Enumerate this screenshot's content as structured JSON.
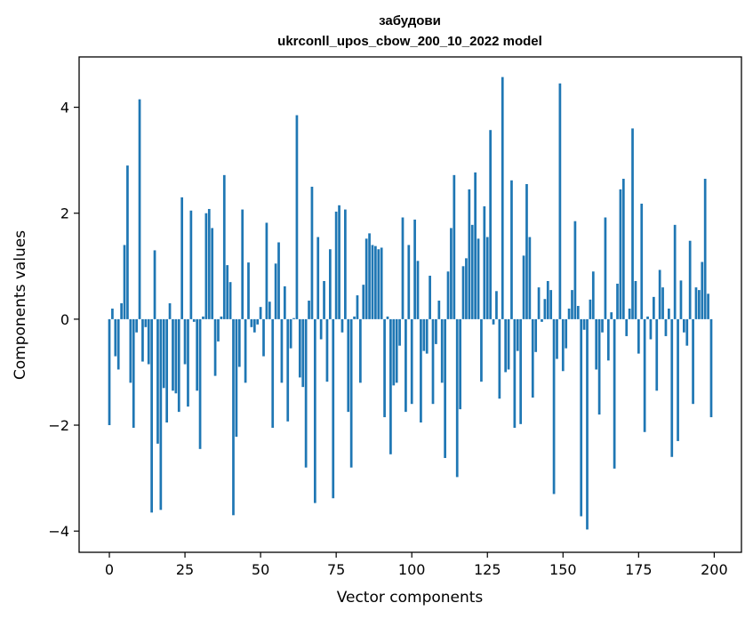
{
  "chart_data": {
    "type": "bar",
    "title_lines": [
      "забудови",
      "ukrconll_upos_cbow_200_10_2022 model"
    ],
    "xlabel": "Vector components",
    "ylabel": "Components values",
    "xlim": [
      -10,
      209
    ],
    "ylim": [
      -4.4,
      4.95
    ],
    "xticks": [
      0,
      25,
      50,
      75,
      100,
      125,
      150,
      175,
      200
    ],
    "yticks": [
      -4,
      -2,
      0,
      2,
      4
    ],
    "ytick_labels": [
      "−4",
      "−2",
      "0",
      "2",
      "4"
    ],
    "bar_color": "#1f77b4",
    "grid": false,
    "x": [
      0,
      1,
      2,
      3,
      4,
      5,
      6,
      7,
      8,
      9,
      10,
      11,
      12,
      13,
      14,
      15,
      16,
      17,
      18,
      19,
      20,
      21,
      22,
      23,
      24,
      25,
      26,
      27,
      28,
      29,
      30,
      31,
      32,
      33,
      34,
      35,
      36,
      37,
      38,
      39,
      40,
      41,
      42,
      43,
      44,
      45,
      46,
      47,
      48,
      49,
      50,
      51,
      52,
      53,
      54,
      55,
      56,
      57,
      58,
      59,
      60,
      61,
      62,
      63,
      64,
      65,
      66,
      67,
      68,
      69,
      70,
      71,
      72,
      73,
      74,
      75,
      76,
      77,
      78,
      79,
      80,
      81,
      82,
      83,
      84,
      85,
      86,
      87,
      88,
      89,
      90,
      91,
      92,
      93,
      94,
      95,
      96,
      97,
      98,
      99,
      100,
      101,
      102,
      103,
      104,
      105,
      106,
      107,
      108,
      109,
      110,
      111,
      112,
      113,
      114,
      115,
      116,
      117,
      118,
      119,
      120,
      121,
      122,
      123,
      124,
      125,
      126,
      127,
      128,
      129,
      130,
      131,
      132,
      133,
      134,
      135,
      136,
      137,
      138,
      139,
      140,
      141,
      142,
      143,
      144,
      145,
      146,
      147,
      148,
      149,
      150,
      151,
      152,
      153,
      154,
      155,
      156,
      157,
      158,
      159,
      160,
      161,
      162,
      163,
      164,
      165,
      166,
      167,
      168,
      169,
      170,
      171,
      172,
      173,
      174,
      175,
      176,
      177,
      178,
      179,
      180,
      181,
      182,
      183,
      184,
      185,
      186,
      187,
      188,
      189,
      190,
      191,
      192,
      193,
      194,
      195,
      196,
      197,
      198,
      199
    ],
    "values": [
      -2.0,
      0.2,
      -0.7,
      -0.95,
      0.3,
      1.4,
      2.9,
      -1.2,
      -2.05,
      -0.25,
      4.15,
      -0.8,
      -0.15,
      -0.85,
      -3.65,
      1.3,
      -2.35,
      -3.6,
      -1.3,
      -1.95,
      0.3,
      -1.35,
      -1.4,
      -1.75,
      2.3,
      -0.85,
      -1.65,
      2.05,
      -0.05,
      -1.35,
      -2.45,
      0.05,
      2.0,
      2.08,
      1.72,
      -1.07,
      -0.42,
      0.05,
      2.72,
      1.02,
      0.7,
      -3.7,
      -2.22,
      -0.9,
      2.07,
      -1.2,
      1.07,
      -0.15,
      -0.25,
      -0.1,
      0.23,
      -0.7,
      1.82,
      0.33,
      -2.05,
      1.05,
      1.45,
      -1.2,
      0.62,
      -1.93,
      -0.55,
      0.02,
      3.85,
      -1.1,
      -1.28,
      -2.8,
      0.35,
      2.5,
      -3.47,
      1.55,
      -0.38,
      0.72,
      -1.18,
      1.32,
      -3.38,
      2.03,
      2.15,
      -0.25,
      2.07,
      -1.75,
      -2.8,
      0.05,
      0.45,
      -1.2,
      0.65,
      1.52,
      1.62,
      1.4,
      1.38,
      1.32,
      1.35,
      -1.85,
      0.05,
      -2.55,
      -1.25,
      -1.2,
      -0.5,
      1.92,
      -1.75,
      1.4,
      -1.6,
      1.88,
      1.1,
      -1.95,
      -0.6,
      -0.65,
      0.82,
      -1.6,
      -0.47,
      0.35,
      -1.2,
      -2.62,
      0.9,
      1.72,
      2.72,
      -2.98,
      -1.7,
      1.0,
      1.15,
      2.45,
      1.78,
      2.77,
      1.52,
      -1.18,
      2.13,
      1.55,
      3.57,
      -0.1,
      0.53,
      -1.5,
      4.57,
      -1.0,
      -0.95,
      2.62,
      -2.05,
      -0.6,
      -1.98,
      1.2,
      2.55,
      1.55,
      -1.48,
      -0.62,
      0.6,
      -0.05,
      0.38,
      0.72,
      0.55,
      -3.3,
      -0.75,
      4.45,
      -0.98,
      -0.55,
      0.2,
      0.55,
      1.85,
      0.25,
      -3.72,
      -0.2,
      -3.97,
      0.37,
      0.9,
      -0.95,
      -1.8,
      -0.25,
      1.92,
      -0.78,
      0.13,
      -2.82,
      0.67,
      2.45,
      2.65,
      -0.32,
      0.2,
      3.6,
      0.72,
      -0.65,
      2.18,
      -2.13,
      0.05,
      -0.38,
      0.42,
      -1.35,
      0.93,
      0.6,
      -0.32,
      0.2,
      -2.6,
      1.78,
      -2.3,
      0.73,
      -0.25,
      -0.5,
      1.48,
      -1.6,
      0.6,
      0.55,
      1.08,
      2.65,
      0.48,
      -1.85
    ]
  }
}
